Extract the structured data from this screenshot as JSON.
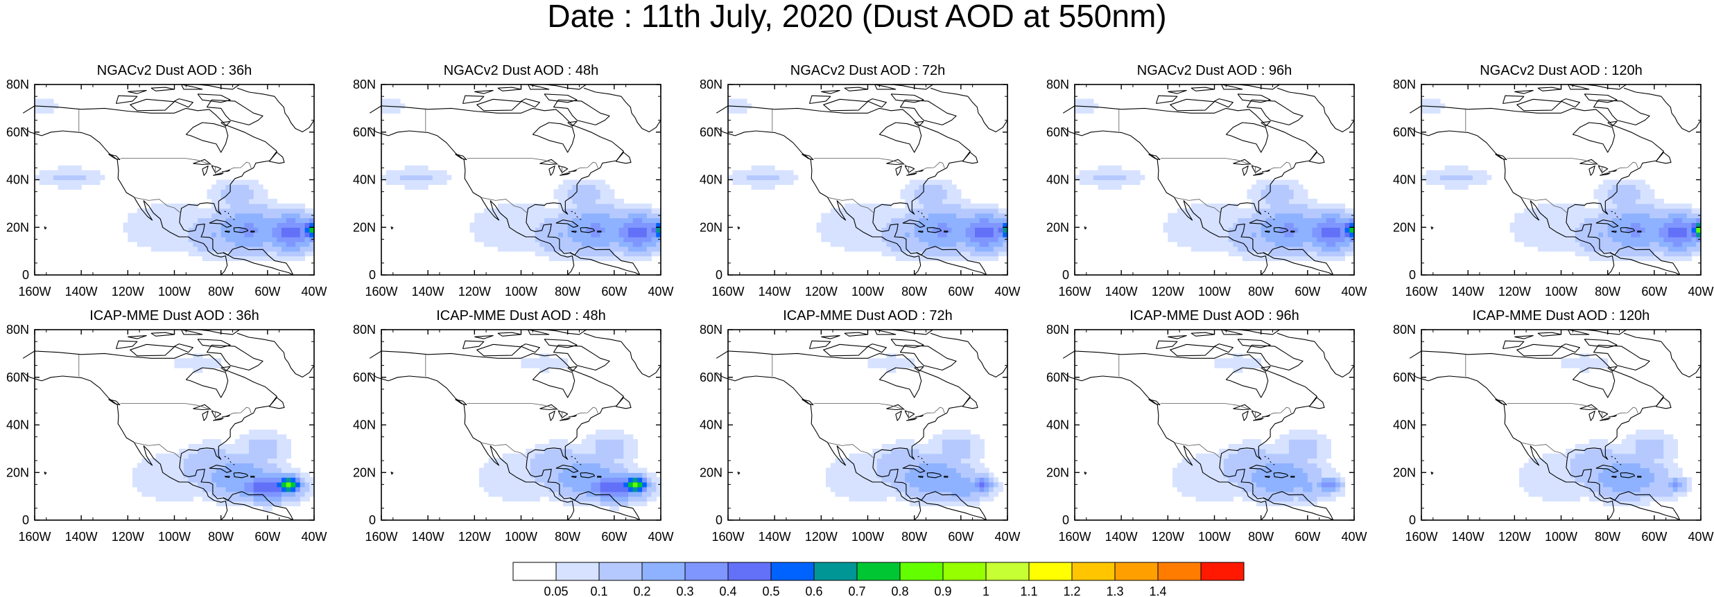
{
  "title": "Date : 11th July, 2020 (Dust AOD at 550nm)",
  "axes": {
    "x_ticks": [
      "160W",
      "140W",
      "120W",
      "100W",
      "80W",
      "60W",
      "40W"
    ],
    "y_ticks": [
      "80N",
      "60N",
      "40N",
      "20N",
      "0"
    ],
    "lon_range": [
      -160,
      -40
    ],
    "lat_range": [
      0,
      80
    ]
  },
  "panels": [
    {
      "title": "NGACv2 Dust AOD : 36h",
      "model": "NGACv2",
      "lead": "36h",
      "core": 0.75
    },
    {
      "title": "NGACv2 Dust AOD : 48h",
      "model": "NGACv2",
      "lead": "48h",
      "core": 0.65
    },
    {
      "title": "NGACv2 Dust AOD : 72h",
      "model": "NGACv2",
      "lead": "72h",
      "core": 0.65
    },
    {
      "title": "NGACv2 Dust AOD : 96h",
      "model": "NGACv2",
      "lead": "96h",
      "core": 0.75
    },
    {
      "title": "NGACv2 Dust AOD : 120h",
      "model": "NGACv2",
      "lead": "120h",
      "core": 0.85
    },
    {
      "title": "ICAP-MME Dust AOD : 36h",
      "model": "ICAP-MME",
      "lead": "36h",
      "core": 0.85
    },
    {
      "title": "ICAP-MME Dust AOD : 48h",
      "model": "ICAP-MME",
      "lead": "48h",
      "core": 0.85
    },
    {
      "title": "ICAP-MME Dust AOD : 72h",
      "model": "ICAP-MME",
      "lead": "72h",
      "core": 0.45
    },
    {
      "title": "ICAP-MME Dust AOD : 96h",
      "model": "ICAP-MME",
      "lead": "96h",
      "core": 0.35
    },
    {
      "title": "ICAP-MME Dust AOD : 120h",
      "model": "ICAP-MME",
      "lead": "120h",
      "core": 0.3
    }
  ],
  "colorbar": {
    "labels": [
      "0.05",
      "0.1",
      "0.2",
      "0.3",
      "0.4",
      "0.5",
      "0.6",
      "0.7",
      "0.8",
      "0.9",
      "1",
      "1.1",
      "1.2",
      "1.3",
      "1.4"
    ],
    "thresholds": [
      0.05,
      0.1,
      0.2,
      0.3,
      0.4,
      0.5,
      0.6,
      0.7,
      0.8,
      0.9,
      1,
      1.1,
      1.2,
      1.3,
      1.4
    ],
    "colors": [
      "#ffffff",
      "#d6e2ff",
      "#b5c9ff",
      "#8eb2ff",
      "#7f96ff",
      "#6370f8",
      "#0063ff",
      "#009696",
      "#00c633",
      "#63ff00",
      "#96ff00",
      "#c6ff33",
      "#ffff00",
      "#ffc600",
      "#ffa000",
      "#ff7c00",
      "#ff1900"
    ]
  },
  "chart_data": {
    "type": "heatmap",
    "title": "Date : 11th July, 2020 (Dust AOD at 550nm)",
    "x_range": [
      -160,
      -40
    ],
    "y_range": [
      0,
      80
    ],
    "x_ticks": [
      "160W",
      "140W",
      "120W",
      "100W",
      "80W",
      "60W",
      "40W"
    ],
    "y_ticks": [
      "80N",
      "60N",
      "40N",
      "20N",
      "0"
    ],
    "panels": [
      "NGACv2 Dust AOD : 36h",
      "NGACv2 Dust AOD : 48h",
      "NGACv2 Dust AOD : 72h",
      "NGACv2 Dust AOD : 96h",
      "NGACv2 Dust AOD : 120h",
      "ICAP-MME Dust AOD : 36h",
      "ICAP-MME Dust AOD : 48h",
      "ICAP-MME Dust AOD : 72h",
      "ICAP-MME Dust AOD : 96h",
      "ICAP-MME Dust AOD : 120h"
    ],
    "colorbar_levels": [
      0.05,
      0.1,
      0.2,
      0.3,
      0.4,
      0.5,
      0.6,
      0.7,
      0.8,
      0.9,
      1,
      1.1,
      1.2,
      1.3,
      1.4
    ]
  }
}
